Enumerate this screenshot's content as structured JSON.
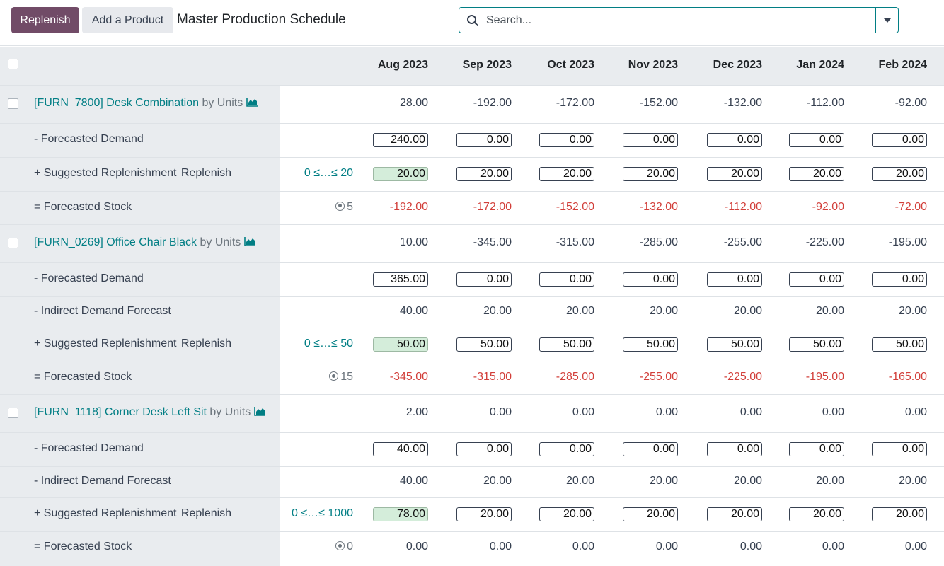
{
  "toolbar": {
    "replenish_label": "Replenish",
    "add_product_label": "Add a Product",
    "title": "Master Production Schedule"
  },
  "search": {
    "placeholder": "Search..."
  },
  "months": [
    "Aug 2023",
    "Sep 2023",
    "Oct 2023",
    "Nov 2023",
    "Dec 2023",
    "Jan 2024",
    "Feb 2024"
  ],
  "products": [
    {
      "code_name": "[FURN_7800] Desk Combination",
      "uom": "by Units",
      "stock": [
        "28.00",
        "-192.00",
        "-172.00",
        "-152.00",
        "-132.00",
        "-112.00",
        "-92.00"
      ],
      "forecasted_demand_label": "- Forecasted Demand",
      "forecasted_demand": [
        "240.00",
        "0.00",
        "0.00",
        "0.00",
        "0.00",
        "0.00",
        "0.00"
      ],
      "replenishment_label": "+ Suggested Replenishment",
      "replenish_link": "Replenish",
      "range": "0 ≤…≤ 20",
      "replenishment": [
        "20.00",
        "20.00",
        "20.00",
        "20.00",
        "20.00",
        "20.00",
        "20.00"
      ],
      "forecasted_stock_label": "= Forecasted Stock",
      "safety_stock": "5",
      "forecasted_stock": [
        "-192.00",
        "-172.00",
        "-152.00",
        "-132.00",
        "-112.00",
        "-92.00",
        "-72.00"
      ]
    },
    {
      "code_name": "[FURN_0269] Office Chair Black",
      "uom": "by Units",
      "stock": [
        "10.00",
        "-345.00",
        "-315.00",
        "-285.00",
        "-255.00",
        "-225.00",
        "-195.00"
      ],
      "forecasted_demand_label": "- Forecasted Demand",
      "forecasted_demand": [
        "365.00",
        "0.00",
        "0.00",
        "0.00",
        "0.00",
        "0.00",
        "0.00"
      ],
      "indirect_demand_label": "- Indirect Demand Forecast",
      "indirect_demand": [
        "40.00",
        "20.00",
        "20.00",
        "20.00",
        "20.00",
        "20.00",
        "20.00"
      ],
      "replenishment_label": "+ Suggested Replenishment",
      "replenish_link": "Replenish",
      "range": "0 ≤…≤ 50",
      "replenishment": [
        "50.00",
        "50.00",
        "50.00",
        "50.00",
        "50.00",
        "50.00",
        "50.00"
      ],
      "forecasted_stock_label": "= Forecasted Stock",
      "safety_stock": "15",
      "forecasted_stock": [
        "-345.00",
        "-315.00",
        "-285.00",
        "-255.00",
        "-225.00",
        "-195.00",
        "-165.00"
      ]
    },
    {
      "code_name": "[FURN_1118] Corner Desk Left Sit",
      "uom": "by Units",
      "stock": [
        "2.00",
        "0.00",
        "0.00",
        "0.00",
        "0.00",
        "0.00",
        "0.00"
      ],
      "forecasted_demand_label": "- Forecasted Demand",
      "forecasted_demand": [
        "40.00",
        "0.00",
        "0.00",
        "0.00",
        "0.00",
        "0.00",
        "0.00"
      ],
      "indirect_demand_label": "- Indirect Demand Forecast",
      "indirect_demand": [
        "40.00",
        "20.00",
        "20.00",
        "20.00",
        "20.00",
        "20.00",
        "20.00"
      ],
      "replenishment_label": "+ Suggested Replenishment",
      "replenish_link": "Replenish",
      "range": "0 ≤…≤ 1000",
      "replenishment": [
        "78.00",
        "20.00",
        "20.00",
        "20.00",
        "20.00",
        "20.00",
        "20.00"
      ],
      "forecasted_stock_label": "= Forecasted Stock",
      "safety_stock": "0",
      "forecasted_stock": [
        "0.00",
        "0.00",
        "0.00",
        "0.00",
        "0.00",
        "0.00",
        "0.00"
      ]
    }
  ],
  "colors": {
    "accent": "#714b67",
    "link": "#017e84",
    "negative": "#d23f3a",
    "highlight": "#d4edda"
  }
}
